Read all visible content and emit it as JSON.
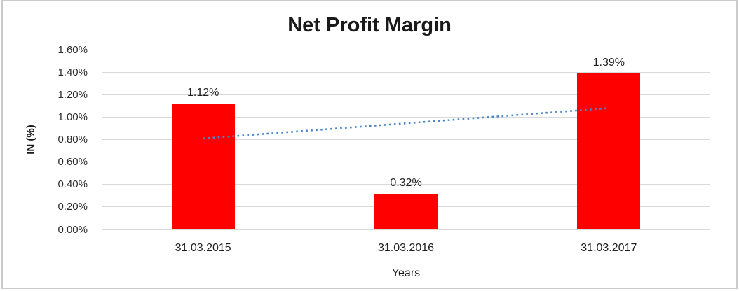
{
  "chart_data": {
    "type": "bar",
    "title": "Net Profit Margin",
    "xlabel": "Years",
    "ylabel": "IN (%)",
    "categories": [
      "31.03.2015",
      "31.03.2016",
      "31.03.2017"
    ],
    "values": [
      1.12,
      0.32,
      1.39
    ],
    "data_labels": [
      "1.12%",
      "0.32%",
      "1.39%"
    ],
    "ylim": [
      0,
      1.6
    ],
    "ytick_step": 0.2,
    "ytick_labels": [
      "0.00%",
      "0.20%",
      "0.40%",
      "0.60%",
      "0.80%",
      "1.00%",
      "1.20%",
      "1.40%",
      "1.60%"
    ],
    "grid": true,
    "legend": "none",
    "trendline": {
      "type": "linear",
      "style": "dotted",
      "start_value": 0.81,
      "end_value": 1.08
    },
    "colors": {
      "bar": "#ff0000",
      "trendline": "#4a86c8",
      "gridline": "#d9d9d9",
      "frame_border": "#cbcbcb",
      "title_text": "#1a1a1a",
      "label_text": "#1f1f1f"
    }
  }
}
